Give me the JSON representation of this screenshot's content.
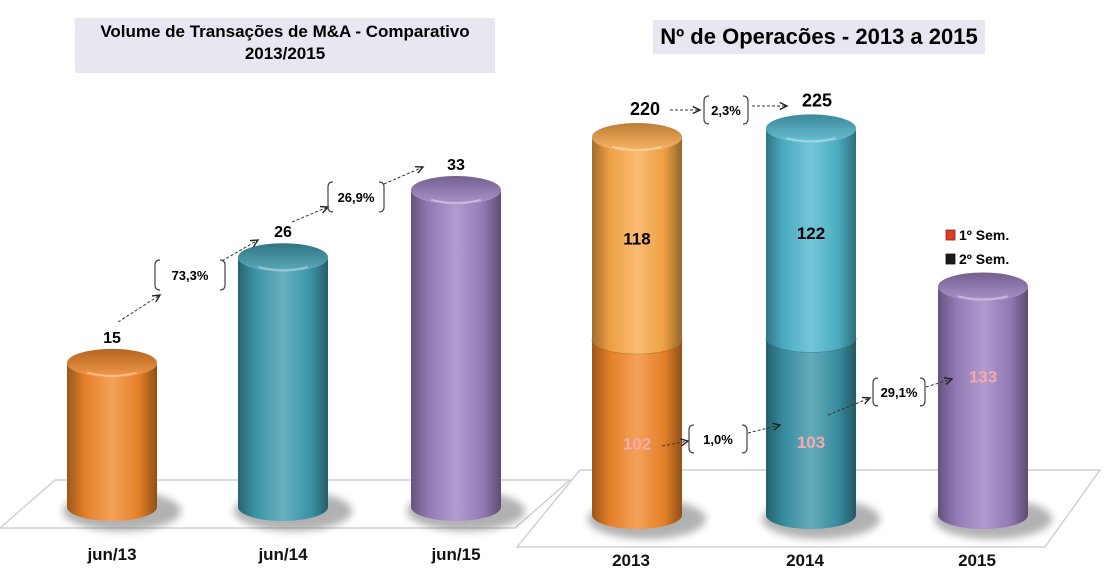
{
  "chart_data": [
    {
      "type": "bar",
      "style": "3d-cylinder",
      "title": "Volume de Transações de M&A - Comparativo 2013/2015",
      "categories": [
        "jun/13",
        "jun/14",
        "jun/15"
      ],
      "values": [
        15,
        26,
        33
      ],
      "colors": [
        "#f0862a",
        "#3e9bb0",
        "#9b80c0"
      ],
      "ylim": [
        0,
        40
      ],
      "grid": false,
      "annotations": [
        {
          "from": "jun/13",
          "to": "jun/14",
          "label": "73,3%"
        },
        {
          "from": "jun/14",
          "to": "jun/15",
          "label": "26,9%"
        }
      ]
    },
    {
      "type": "bar",
      "style": "3d-cylinder-stacked",
      "title": "Nº de Operacões  - 2013 a 2015",
      "categories": [
        "2013",
        "2014",
        "2015"
      ],
      "series": [
        {
          "name": "1º Sem.",
          "values": [
            102,
            103,
            133
          ],
          "legend_color": "#e03a2a",
          "label_color": "#f7a9b0"
        },
        {
          "name": "2º Sem.",
          "values": [
            118,
            122,
            null
          ],
          "legend_color": "#1a1a1a",
          "label_color": "#000000"
        }
      ],
      "totals": [
        220,
        225,
        null
      ],
      "colors": [
        {
          "bottom": "#f0862a",
          "top": "#f9a848"
        },
        {
          "bottom": "#3a93a6",
          "top": "#4eb5cc"
        },
        {
          "bottom": "#9a7fbe",
          "top": "#9a7fbe"
        }
      ],
      "ylim": [
        0,
        240
      ],
      "grid": false,
      "legend_position": "right",
      "annotations": [
        {
          "from": "2013",
          "to": "2014",
          "series": "total",
          "label": "2,3%"
        },
        {
          "from": "2013",
          "to": "2014",
          "series": "1º Sem.",
          "label": "1,0%"
        },
        {
          "from": "2014",
          "to": "2015",
          "series": "1º Sem.",
          "label": "29,1%"
        }
      ]
    }
  ]
}
